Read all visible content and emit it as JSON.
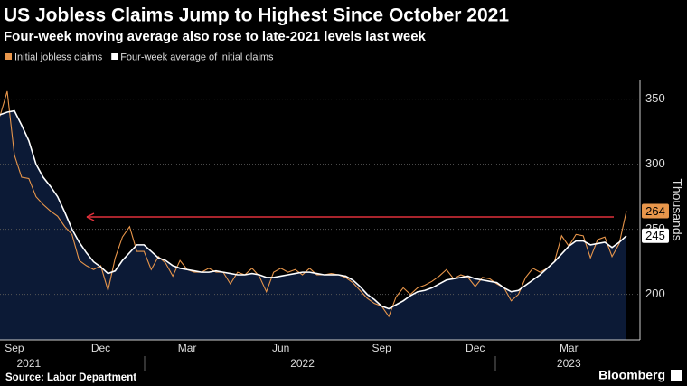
{
  "chart_data": {
    "type": "line",
    "title": "US Jobless Claims Jump to Highest Since October 2021",
    "subtitle": "Four-week moving average also rose to late-2021 levels last week",
    "y_axis_label": "Thousands",
    "source": "Source: Labor Department",
    "brand": "Bloomberg",
    "categories": [
      null,
      null,
      "Sep",
      null,
      null,
      null,
      null,
      null,
      null,
      null,
      null,
      null,
      null,
      null,
      "Dec",
      null,
      null,
      null,
      null,
      null,
      null,
      null,
      null,
      null,
      null,
      null,
      "Mar",
      null,
      null,
      null,
      null,
      null,
      null,
      null,
      null,
      null,
      null,
      null,
      null,
      "Jun",
      null,
      null,
      null,
      null,
      null,
      null,
      null,
      null,
      null,
      null,
      null,
      null,
      null,
      "Sep",
      null,
      null,
      null,
      null,
      null,
      null,
      null,
      null,
      null,
      null,
      null,
      null,
      "Dec",
      null,
      null,
      null,
      null,
      null,
      null,
      null,
      null,
      null,
      null,
      null,
      null,
      "Mar",
      null,
      null,
      null,
      null,
      null,
      null,
      null,
      null
    ],
    "year_labels": [
      {
        "value": 4,
        "label": "2021"
      },
      {
        "value": 42,
        "label": "2022"
      },
      {
        "value": 79,
        "label": "2023"
      }
    ],
    "series": [
      {
        "name": "Initial jobless claims",
        "color": "#e8964b",
        "values": [
          337,
          356,
          307,
          290,
          289,
          275,
          269,
          264,
          260,
          252,
          246,
          226,
          222,
          219,
          222,
          203,
          228,
          244,
          252,
          233,
          233,
          219,
          229,
          224,
          214,
          226,
          219,
          217,
          217,
          220,
          217,
          217,
          208,
          217,
          215,
          220,
          214,
          202,
          217,
          220,
          217,
          219,
          215,
          220,
          215,
          215,
          216,
          215,
          213,
          209,
          203,
          197,
          193,
          191,
          183,
          198,
          205,
          200,
          205,
          207,
          210,
          214,
          219,
          212,
          215,
          213,
          206,
          213,
          212,
          208,
          205,
          195,
          200,
          213,
          220,
          217,
          220,
          225,
          245,
          237,
          246,
          245,
          228,
          242,
          244,
          229,
          239,
          264
        ]
      },
      {
        "name": "Four-week average of initial claims",
        "color": "#ffffff",
        "area_color": "#0c1a36",
        "values": [
          338,
          340,
          341,
          330,
          318,
          300,
          290,
          283,
          275,
          263,
          250,
          240,
          232,
          225,
          221,
          216,
          218,
          226,
          232,
          238,
          238,
          233,
          228,
          226,
          222,
          220,
          219,
          218,
          217,
          217,
          218,
          217,
          216,
          215,
          215,
          216,
          215,
          213,
          213,
          214,
          215,
          216,
          217,
          217,
          216,
          215,
          215,
          215,
          214,
          211,
          206,
          200,
          196,
          191,
          189,
          192,
          195,
          199,
          202,
          203,
          205,
          208,
          211,
          212,
          213,
          214,
          212,
          211,
          210,
          209,
          205,
          202,
          203,
          207,
          211,
          215,
          220,
          225,
          231,
          237,
          241,
          241,
          238,
          239,
          240,
          236,
          240,
          245
        ]
      }
    ],
    "ylim": [
      165,
      365
    ],
    "yticks": [
      200,
      250,
      300,
      350
    ],
    "grid": true,
    "legend": "top-left"
  }
}
